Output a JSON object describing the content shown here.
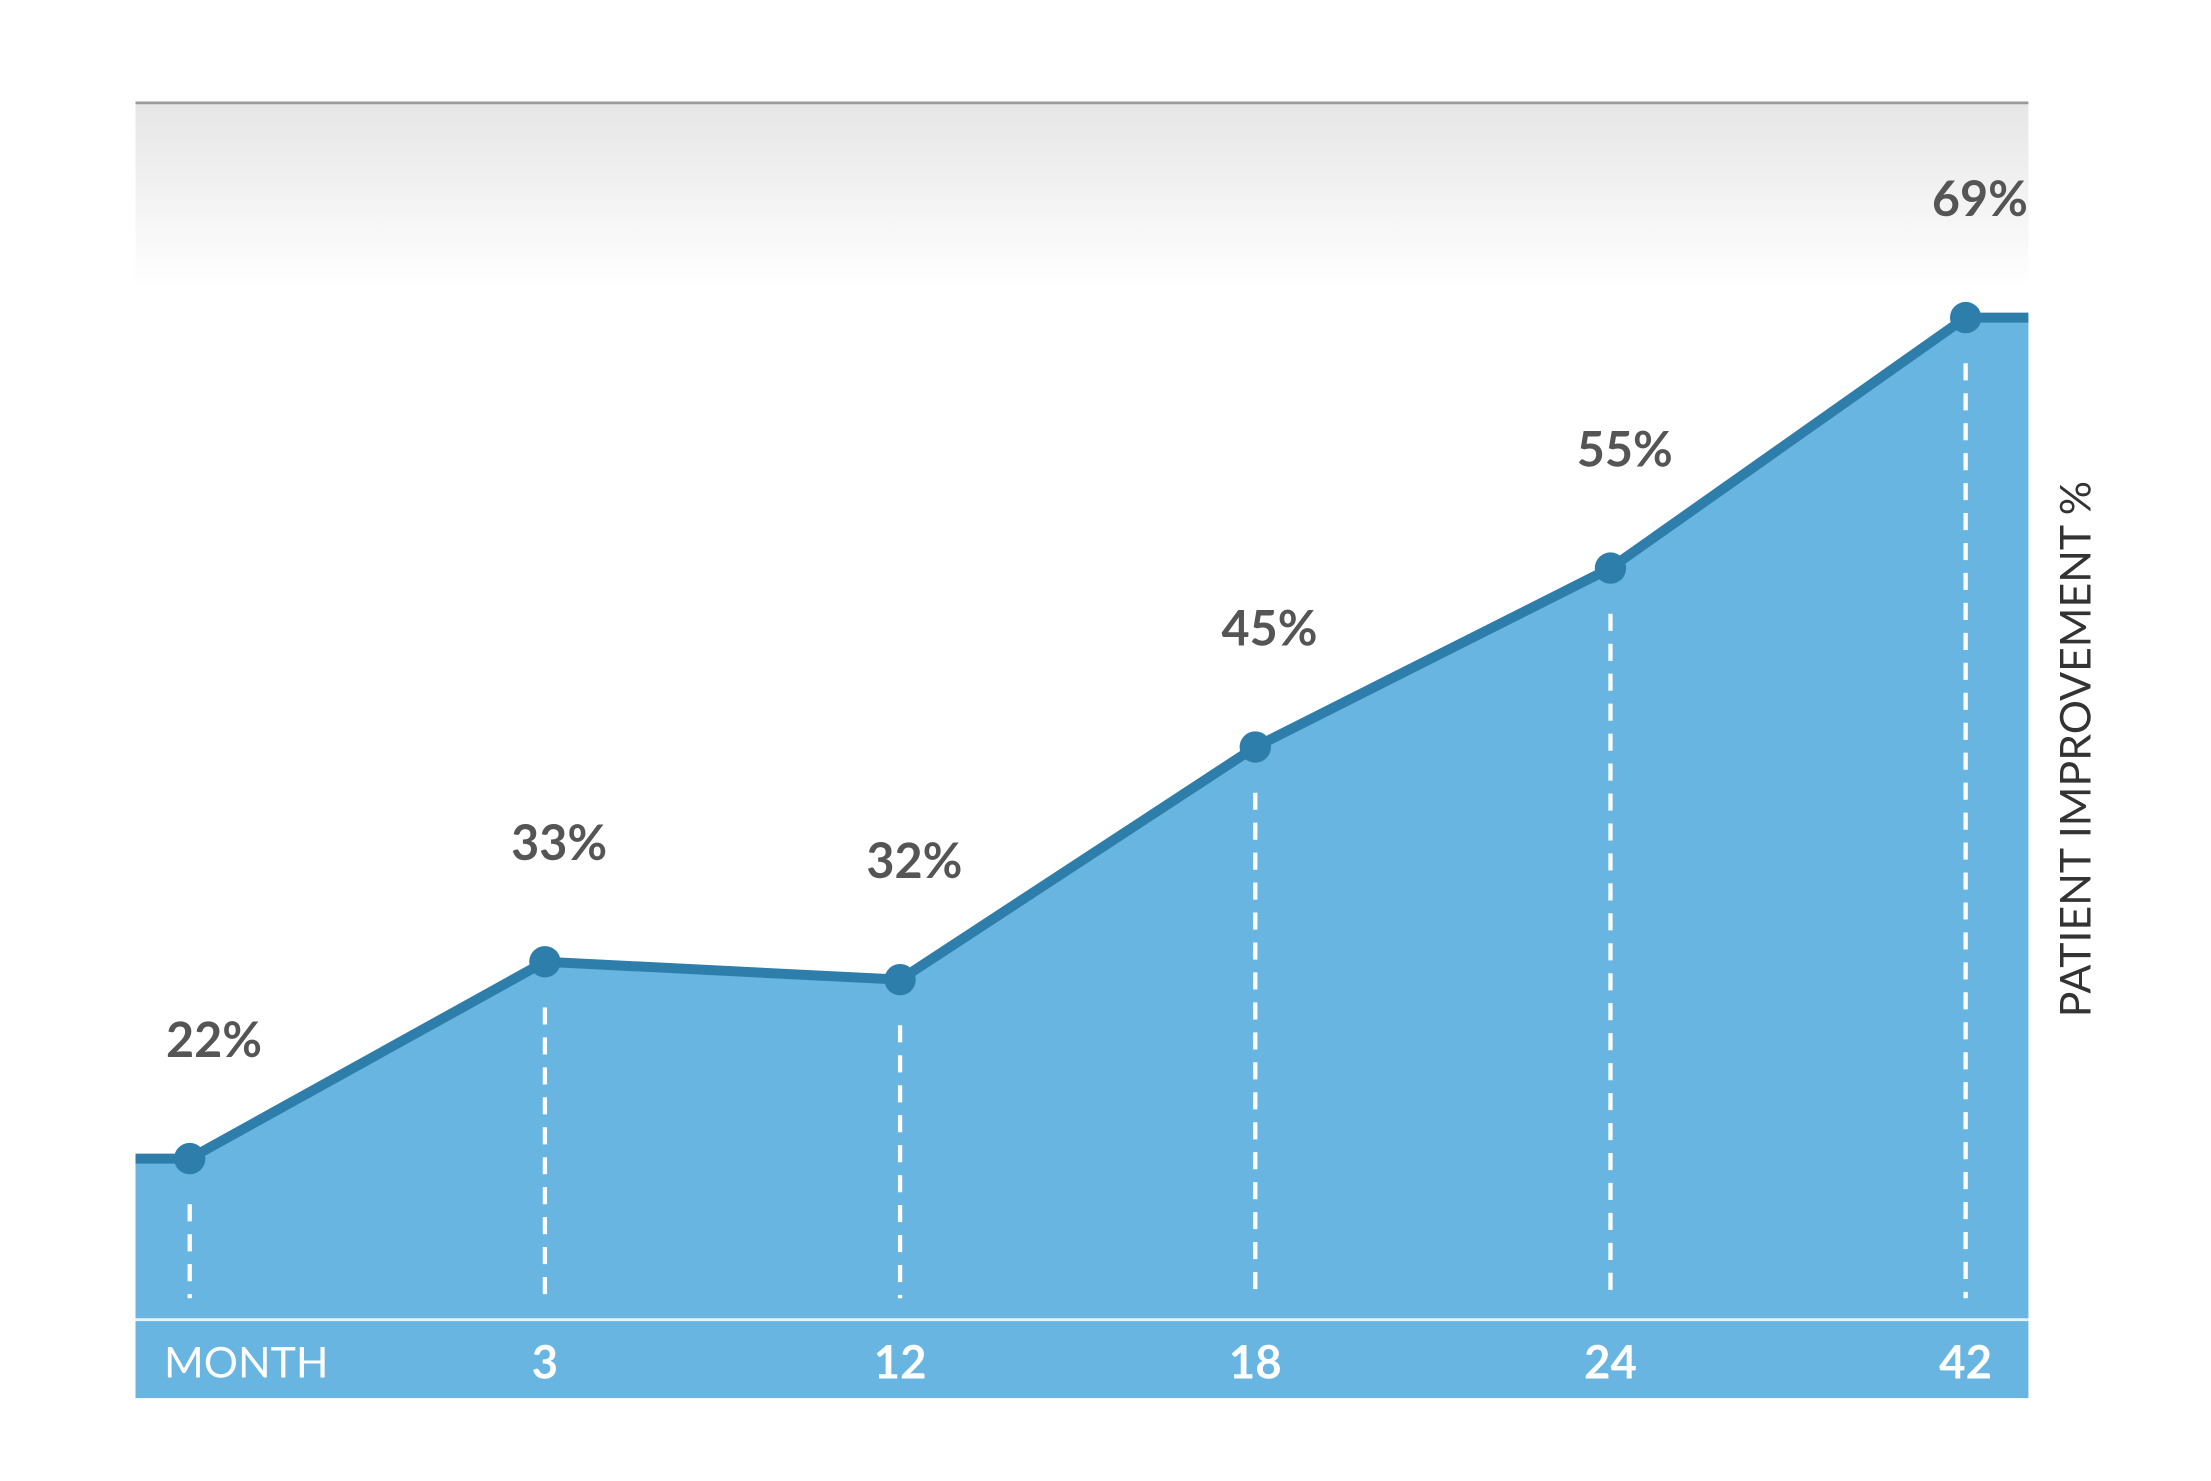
{
  "chart_data": {
    "type": "area",
    "x_label": "MONTH",
    "y_label": "PATIENT IMPROVEMENT %",
    "categories": [
      null,
      "3",
      "12",
      "18",
      "24",
      "42"
    ],
    "values": [
      22,
      33,
      32,
      45,
      55,
      69
    ],
    "value_labels": [
      "22%",
      "33%",
      "32%",
      "45%",
      "55%",
      "69%"
    ],
    "color": "#2e7eac",
    "fill_color": "#68b5e1",
    "ylim": [
      13,
      81
    ]
  }
}
